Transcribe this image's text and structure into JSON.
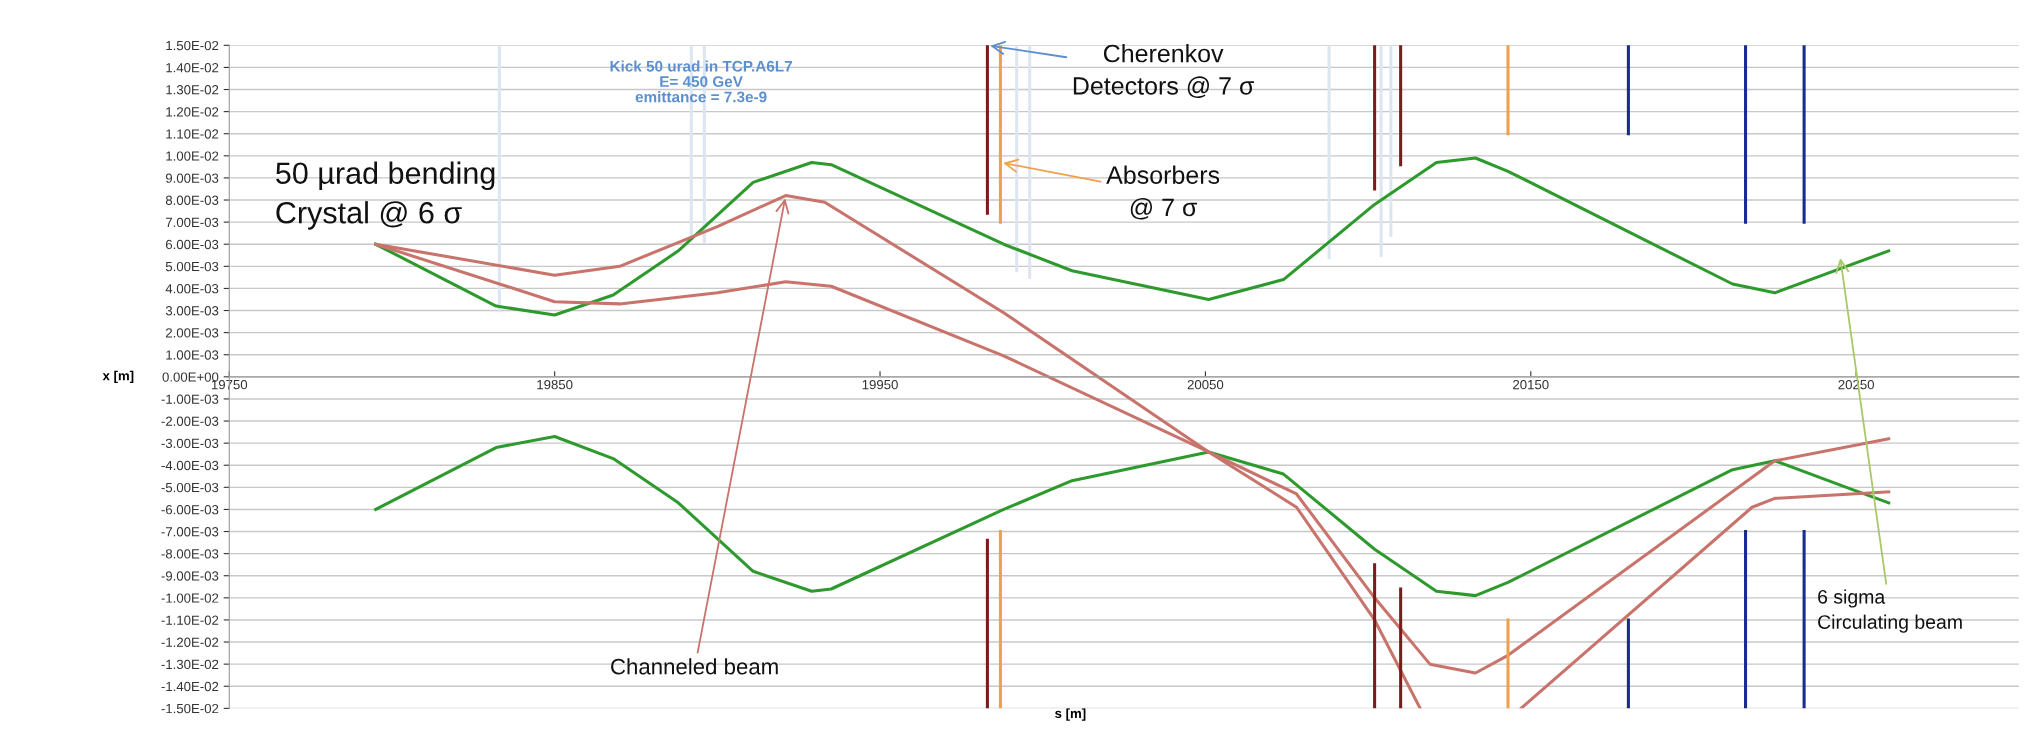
{
  "chart_data": {
    "type": "line",
    "xlabel": "s [m]",
    "ylabel": "x [m]",
    "xlim": [
      19750,
      20300
    ],
    "xticks": [
      19750,
      19850,
      19950,
      20050,
      20150,
      20250
    ],
    "ylim": [
      -0.015,
      0.015
    ],
    "yticks": [
      {
        "value": 0.015,
        "label": "1.50E-02"
      },
      {
        "value": 0.014,
        "label": "1.40E-02"
      },
      {
        "value": 0.013,
        "label": "1.30E-02"
      },
      {
        "value": 0.012,
        "label": "1.20E-02"
      },
      {
        "value": 0.011,
        "label": "1.10E-02"
      },
      {
        "value": 0.01,
        "label": "1.00E-02"
      },
      {
        "value": 0.009,
        "label": "9.00E-03"
      },
      {
        "value": 0.008,
        "label": "8.00E-03"
      },
      {
        "value": 0.007,
        "label": "7.00E-03"
      },
      {
        "value": 0.006,
        "label": "6.00E-03"
      },
      {
        "value": 0.005,
        "label": "5.00E-03"
      },
      {
        "value": 0.004,
        "label": "4.00E-03"
      },
      {
        "value": 0.003,
        "label": "3.00E-03"
      },
      {
        "value": 0.002,
        "label": "2.00E-03"
      },
      {
        "value": 0.001,
        "label": "1.00E-03"
      },
      {
        "value": 0,
        "label": "0.00E+00"
      },
      {
        "value": -0.001,
        "label": "-1.00E-03"
      },
      {
        "value": -0.002,
        "label": "-2.00E-03"
      },
      {
        "value": -0.003,
        "label": "-3.00E-03"
      },
      {
        "value": -0.004,
        "label": "-4.00E-03"
      },
      {
        "value": -0.005,
        "label": "-5.00E-03"
      },
      {
        "value": -0.006,
        "label": "-6.00E-03"
      },
      {
        "value": -0.007,
        "label": "-7.00E-03"
      },
      {
        "value": -0.008,
        "label": "-8.00E-03"
      },
      {
        "value": -0.009,
        "label": "-9.00E-03"
      },
      {
        "value": -0.01,
        "label": "-1.00E-02"
      },
      {
        "value": -0.011,
        "label": "-1.10E-02"
      },
      {
        "value": -0.012,
        "label": "-1.20E-02"
      },
      {
        "value": -0.013,
        "label": "-1.30E-02"
      },
      {
        "value": -0.014,
        "label": "-1.40E-02"
      },
      {
        "value": -0.015,
        "label": "-1.50E-02"
      }
    ],
    "grid": "y",
    "line_style": "solid",
    "series": [
      {
        "color": "#dde6f0",
        "x": [
          19833,
          19833
        ],
        "values": [
          0.003,
          0.015
        ]
      },
      {
        "color": "#dde6f0",
        "x": [
          19892,
          19892
        ],
        "values": [
          0.0063,
          0.015
        ]
      },
      {
        "color": "#dde6f0",
        "x": [
          19896,
          19896
        ],
        "values": [
          0.0061,
          0.015
        ]
      },
      {
        "color": "#dde6f0",
        "x": [
          19992,
          19992
        ],
        "values": [
          0.0048,
          0.015
        ]
      },
      {
        "color": "#dde6f0",
        "x": [
          19996,
          19996
        ],
        "values": [
          0.0045,
          0.015
        ]
      },
      {
        "color": "#dde6f0",
        "x": [
          20088,
          20088
        ],
        "values": [
          0.0054,
          0.015
        ]
      },
      {
        "color": "#dde6f0",
        "x": [
          20104,
          20104
        ],
        "values": [
          0.0055,
          0.015
        ]
      },
      {
        "color": "#dde6f0",
        "x": [
          20107,
          20107
        ],
        "values": [
          0.0064,
          0.015
        ]
      },
      {
        "color": "#2e9a2e",
        "x": [
          19795,
          19832,
          19850,
          19868,
          19888,
          19911,
          19929,
          19935,
          19988,
          20009,
          20051,
          20074,
          20102,
          20121,
          20133,
          20143,
          20212,
          20225,
          20247,
          20260
        ],
        "values": [
          0.006,
          0.0032,
          0.0028,
          0.0037,
          0.0057,
          0.0088,
          0.0097,
          0.0096,
          0.006,
          0.0048,
          0.0035,
          0.0044,
          0.0078,
          0.0097,
          0.0099,
          0.0093,
          0.0042,
          0.0038,
          0.005,
          0.0057
        ]
      },
      {
        "color": "#2e9a2e",
        "x": [
          19795,
          19832,
          19850,
          19868,
          19888,
          19911,
          19929,
          19935,
          19988,
          20009,
          20051,
          20074,
          20102,
          20121,
          20133,
          20143,
          20212,
          20225,
          20247,
          20260
        ],
        "values": [
          -0.006,
          -0.0032,
          -0.0027,
          -0.0037,
          -0.0057,
          -0.0088,
          -0.0097,
          -0.0096,
          -0.006,
          -0.0047,
          -0.0034,
          -0.0044,
          -0.0078,
          -0.0097,
          -0.0099,
          -0.0093,
          -0.0042,
          -0.0038,
          -0.005,
          -0.0057
        ]
      },
      {
        "color": "#c8736b",
        "x": [
          19795,
          19850,
          19870,
          19900,
          19921,
          19933,
          19988,
          20051,
          20078,
          20102,
          20116
        ],
        "values": [
          0.006,
          0.0046,
          0.005,
          0.0068,
          0.0082,
          0.0079,
          0.0029,
          -0.0034,
          -0.0059,
          -0.011,
          -0.015
        ]
      },
      {
        "color": "#c8736b",
        "x": [
          19795,
          19850,
          19870,
          19900,
          19921,
          19935,
          19988,
          20051,
          20078,
          20102,
          20119,
          20133,
          20143,
          20225,
          20260
        ],
        "values": [
          0.006,
          0.0034,
          0.0033,
          0.0038,
          0.0043,
          0.0041,
          0.00095,
          -0.0034,
          -0.0053,
          -0.01,
          -0.013,
          -0.0134,
          -0.0126,
          -0.0038,
          -0.0028
        ]
      },
      {
        "color": "#c8736b",
        "x": [
          20147,
          20218,
          20225,
          20260
        ],
        "values": [
          -0.015,
          -0.0059,
          -0.0055,
          -0.0052
        ]
      },
      {
        "color": "#7a1c1c",
        "x": [
          19983,
          19983
        ],
        "values": [
          0.0074,
          0.015
        ]
      },
      {
        "color": "#7a1c1c",
        "x": [
          20102,
          20102
        ],
        "values": [
          0.0085,
          0.015
        ]
      },
      {
        "color": "#7a1c1c",
        "x": [
          20110,
          20110
        ],
        "values": [
          0.0096,
          0.015
        ]
      },
      {
        "color": "#7a1c1c",
        "x": [
          19983,
          19983
        ],
        "values": [
          -0.0074,
          -0.015
        ]
      },
      {
        "color": "#7a1c1c",
        "x": [
          20102,
          20102
        ],
        "values": [
          -0.0085,
          -0.015
        ]
      },
      {
        "color": "#7a1c1c",
        "x": [
          20110,
          20110
        ],
        "values": [
          -0.0096,
          -0.015
        ]
      },
      {
        "color": "#f0a04b",
        "x": [
          19987,
          19987
        ],
        "values": [
          0.007,
          0.015
        ]
      },
      {
        "color": "#f0a04b",
        "x": [
          20143,
          20143
        ],
        "values": [
          0.011,
          0.015
        ]
      },
      {
        "color": "#f0a04b",
        "x": [
          19987,
          19987
        ],
        "values": [
          -0.007,
          -0.015
        ]
      },
      {
        "color": "#f0a04b",
        "x": [
          20143,
          20143
        ],
        "values": [
          -0.011,
          -0.015
        ]
      },
      {
        "color": "#1a2b8f",
        "x": [
          20180,
          20180
        ],
        "values": [
          0.011,
          0.015
        ]
      },
      {
        "color": "#1a2b8f",
        "x": [
          20216,
          20216
        ],
        "values": [
          0.007,
          0.015
        ]
      },
      {
        "color": "#1a2b8f",
        "x": [
          20234,
          20234
        ],
        "values": [
          0.007,
          0.015
        ]
      },
      {
        "color": "#1a2b8f",
        "x": [
          20180,
          20180
        ],
        "values": [
          -0.011,
          -0.015
        ]
      },
      {
        "color": "#1a2b8f",
        "x": [
          20216,
          20216
        ],
        "values": [
          -0.007,
          -0.015
        ]
      },
      {
        "color": "#1a2b8f",
        "x": [
          20234,
          20234
        ],
        "values": [
          -0.007,
          -0.015
        ]
      }
    ],
    "annotations": [
      "Kick 50 urad in TCP.A6L7\nE= 450 GeV\nemittance = 7.3e-9",
      "50 µrad bending\nCrystal @ 6 σ",
      {
        "text": "Cherenkov\nDetectors @ 7 σ",
        "x": 19983,
        "y": 0.015
      },
      {
        "text": "Absorbers\n@ 7 σ",
        "x": 19987,
        "y": 0.0097
      },
      {
        "text": "Channeled beam",
        "x": 19921,
        "y": 0.0082
      },
      {
        "text": "6 sigma\nCirculating beam",
        "x": 20245,
        "y": 0.0055
      }
    ]
  }
}
